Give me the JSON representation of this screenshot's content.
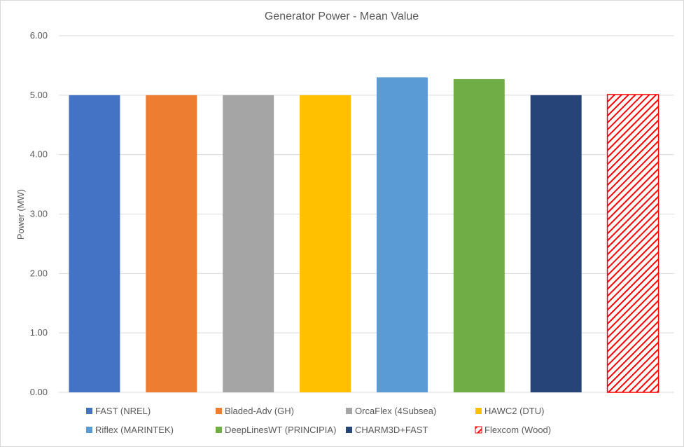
{
  "chart_data": {
    "type": "bar",
    "title": "Generator Power - Mean Value",
    "xlabel": "",
    "ylabel": "Power (MW)",
    "ylim": [
      0,
      6
    ],
    "yticks": [
      "0.00",
      "1.00",
      "2.00",
      "3.00",
      "4.00",
      "5.00",
      "6.00"
    ],
    "grid": true,
    "legend_position": "bottom",
    "categories": [
      "FAST (NREL)",
      "Bladed-Adv (GH)",
      "OrcaFlex (4Subsea)",
      "HAWC2 (DTU)",
      "Riflex (MARINTEK)",
      "DeepLinesWT (PRINCIPIA)",
      "CHARM3D+FAST",
      "Flexcom (Wood)"
    ],
    "values": [
      5.0,
      5.0,
      5.0,
      5.0,
      5.3,
      5.27,
      5.0,
      5.01
    ],
    "colors": [
      "#4472C4",
      "#ED7D31",
      "#A5A5A5",
      "#FFC000",
      "#5B9BD5",
      "#70AD47",
      "#264478",
      "#FF0000"
    ],
    "patterns": [
      "solid",
      "solid",
      "solid",
      "solid",
      "solid",
      "solid",
      "solid",
      "hatch"
    ]
  }
}
